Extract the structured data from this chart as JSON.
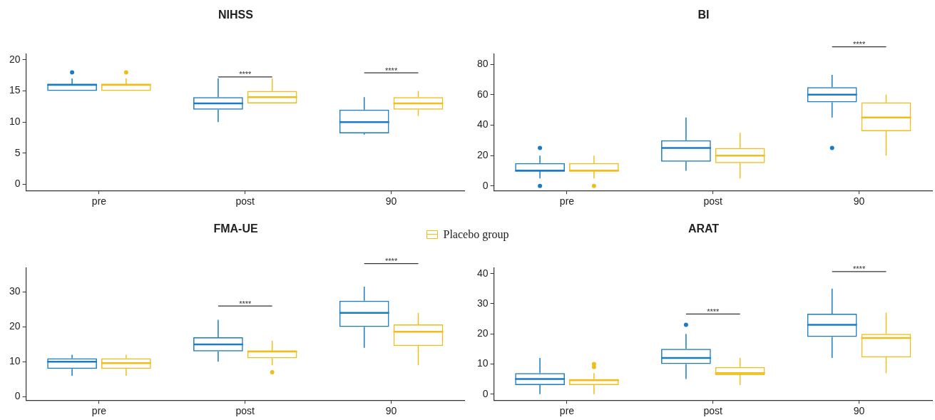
{
  "chart_data": [
    {
      "type": "box",
      "title": "NIHSS",
      "categories": [
        "pre",
        "post",
        "90"
      ],
      "ylim": [
        -1,
        21
      ],
      "yticks": [
        0,
        5,
        10,
        15,
        20
      ],
      "grid": false,
      "series": [
        {
          "color": "#1a7cc4",
          "boxes": [
            {
              "low": 15,
              "q1": 15,
              "median": 16,
              "q3": 16,
              "high": 17,
              "outliers": [
                18
              ]
            },
            {
              "low": 10,
              "q1": 12,
              "median": 13,
              "q3": 14,
              "high": 17
            },
            {
              "low": 8,
              "q1": 8.2,
              "median": 10,
              "q3": 12,
              "high": 14
            }
          ]
        },
        {
          "color": "#f0be1a",
          "boxes": [
            {
              "low": 15,
              "q1": 15,
              "median": 16,
              "q3": 16,
              "high": 17,
              "outliers": [
                18
              ]
            },
            {
              "low": 13,
              "q1": 13,
              "median": 14,
              "q3": 15,
              "high": 17
            },
            {
              "low": 11,
              "q1": 12,
              "median": 13,
              "q3": 14,
              "high": 15
            }
          ]
        }
      ],
      "annotations": [
        "****",
        "****"
      ]
    },
    {
      "type": "box",
      "title": "BI",
      "categories": [
        "pre",
        "post",
        "90"
      ],
      "ylim": [
        -3,
        87
      ],
      "yticks": [
        0,
        20,
        40,
        60,
        80
      ],
      "grid": false,
      "series": [
        {
          "color": "#1a7cc4",
          "boxes": [
            {
              "low": 5,
              "q1": 10,
              "median": 10,
              "q3": 15,
              "high": 20,
              "outliers": [
                25,
                0
              ]
            },
            {
              "low": 10,
              "q1": 16,
              "median": 25,
              "q3": 30,
              "high": 45
            },
            {
              "low": 45,
              "q1": 55,
              "median": 60,
              "q3": 65,
              "high": 73,
              "outliers": [
                25
              ]
            }
          ]
        },
        {
          "color": "#f0be1a",
          "boxes": [
            {
              "low": 5,
              "q1": 10,
              "median": 10,
              "q3": 15,
              "high": 20,
              "outliers": [
                0
              ]
            },
            {
              "low": 5,
              "q1": 15,
              "median": 20,
              "q3": 25,
              "high": 35
            },
            {
              "low": 20,
              "q1": 36,
              "median": 45,
              "q3": 55,
              "high": 60
            }
          ]
        }
      ],
      "annotations": [
        "****"
      ]
    },
    {
      "type": "box",
      "title": "FMA-UE",
      "categories": [
        "pre",
        "post",
        "90"
      ],
      "ylim": [
        -1,
        37
      ],
      "yticks": [
        0,
        10,
        20,
        30
      ],
      "grid": false,
      "legend": "top",
      "series": [
        {
          "color": "#1a7cc4",
          "boxes": [
            {
              "low": 6,
              "q1": 8,
              "median": 10,
              "q3": 11,
              "high": 12
            },
            {
              "low": 10,
              "q1": 13,
              "median": 15,
              "q3": 17,
              "high": 22
            },
            {
              "low": 14,
              "q1": 20,
              "median": 24,
              "q3": 27.5,
              "high": 31.5
            }
          ]
        },
        {
          "name": "Placebo group",
          "color": "#f0be1a",
          "boxes": [
            {
              "low": 6,
              "q1": 8,
              "median": 9.6,
              "q3": 11,
              "high": 12
            },
            {
              "low": 9,
              "q1": 11,
              "median": 13,
              "q3": 13,
              "high": 16,
              "outliers": [
                7
              ]
            },
            {
              "low": 9,
              "q1": 14.5,
              "median": 18.6,
              "q3": 20.7,
              "high": 24
            }
          ]
        }
      ],
      "annotations": [
        "****",
        "****"
      ]
    },
    {
      "type": "box",
      "title": "ARAT",
      "categories": [
        "pre",
        "post",
        "90"
      ],
      "ylim": [
        -2,
        42
      ],
      "yticks": [
        0,
        10,
        20,
        30,
        40
      ],
      "grid": false,
      "series": [
        {
          "color": "#1a7cc4",
          "boxes": [
            {
              "low": 0,
              "q1": 3,
              "median": 5,
              "q3": 7,
              "high": 12
            },
            {
              "low": 5,
              "q1": 10,
              "median": 12,
              "q3": 15,
              "high": 20,
              "outliers": [
                23
              ]
            },
            {
              "low": 12,
              "q1": 19,
              "median": 23,
              "q3": 26.7,
              "high": 35
            }
          ]
        },
        {
          "color": "#f0be1a",
          "boxes": [
            {
              "low": 0,
              "q1": 3,
              "median": 4.6,
              "q3": 5,
              "high": 7,
              "outliers": [
                9,
                10
              ]
            },
            {
              "low": 3,
              "q1": 6.3,
              "median": 7,
              "q3": 9,
              "high": 12
            },
            {
              "low": 7,
              "q1": 12.2,
              "median": 18.6,
              "q3": 20,
              "high": 27
            }
          ]
        }
      ],
      "annotations": [
        "****",
        "****"
      ]
    }
  ]
}
